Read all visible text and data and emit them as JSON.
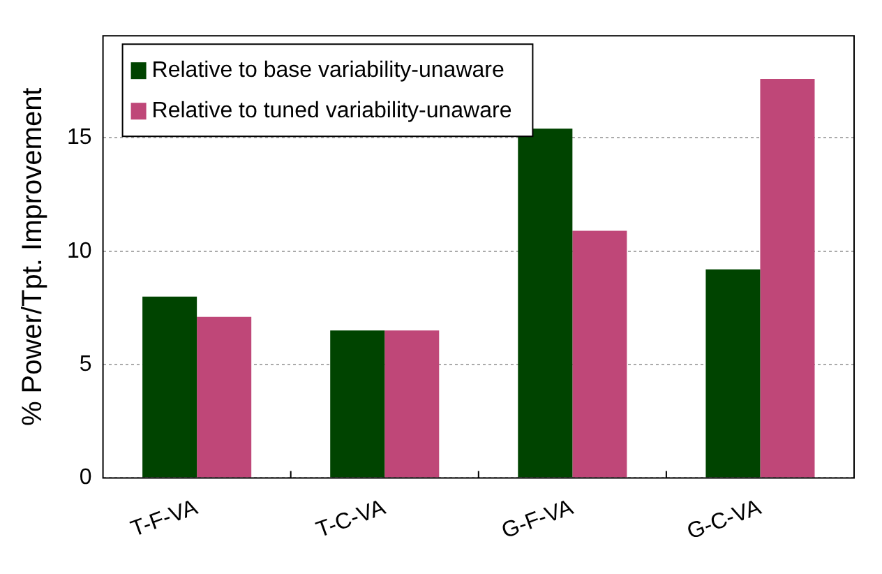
{
  "chart_data": {
    "type": "bar",
    "ylabel": "% Power/Tpt. Improvement",
    "categories": [
      "T-F-VA",
      "T-C-VA",
      "G-F-VA",
      "G-C-VA"
    ],
    "series": [
      {
        "name": "Relative to base variability-unaware",
        "color": "#004400",
        "values": [
          8.0,
          6.5,
          15.4,
          9.2
        ]
      },
      {
        "name": "Relative to tuned variability-unaware",
        "color": "#bf4778",
        "values": [
          7.1,
          6.5,
          10.9,
          17.6
        ]
      }
    ],
    "ylim": [
      0,
      19.5
    ],
    "yticks": [
      0,
      5,
      10,
      15
    ],
    "grid": "y",
    "legend": "top left"
  }
}
